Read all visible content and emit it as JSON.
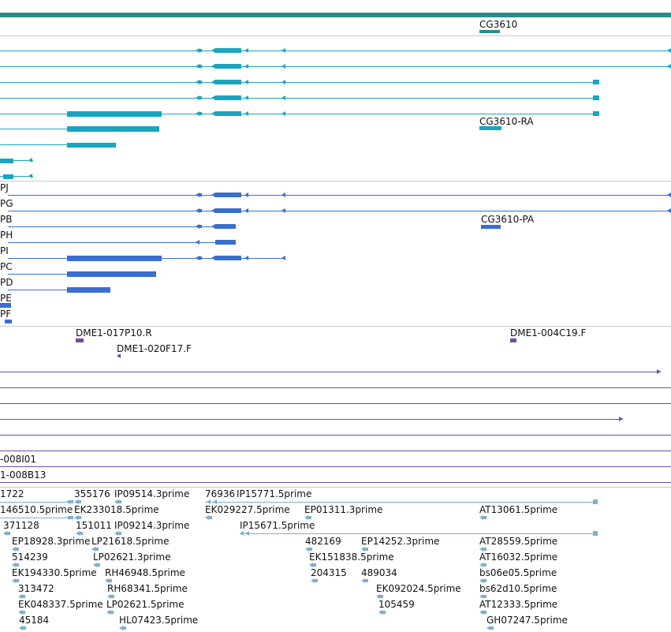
{
  "colors": {
    "gene_bar": "#2e8b8b",
    "transcript_teal": "#1aa5bf",
    "protein_blue": "#3a6ecf",
    "clone_purple": "#6e4ea0",
    "est_lightblue": "#7ab0d6",
    "separator": "#c9c9c9"
  },
  "gene": {
    "label": "CG3610"
  },
  "transcripts_rna": {
    "label_ra": "CG3610-RA"
  },
  "transcripts_protein": {
    "row_labels": [
      "PJ",
      "PG",
      "PB",
      "PH",
      "PI",
      "PC",
      "PD",
      "PE",
      "PF"
    ],
    "label_pa": "CG3610-PA"
  },
  "clones": {
    "labels": [
      "DME1-017P10.R",
      "DME1-004C19.F",
      "DME1-020F17.F"
    ],
    "partial_labels": [
      "-008I01",
      "1-008B13"
    ]
  },
  "ests": {
    "labels": [
      "1722",
      "355176",
      "IP09514.3prime",
      "76936",
      "IP15771.5prime",
      "146510.5prime",
      "EK233018.5prime",
      "EK029227.5prime",
      "EP01311.3prime",
      "AT13061.5prime",
      "371128",
      "151011",
      "IP09214.3prime",
      "IP15671.5prime",
      "EP18928.3prime",
      "LP21618.5prime",
      "482169",
      "EP14252.3prime",
      "AT28559.5prime",
      "514239",
      "LP02621.3prime",
      "EK151838.5prime",
      "AT16032.5prime",
      "EK194330.5prime",
      "RH46948.5prime",
      "204315",
      "489034",
      "bs06e05.5prime",
      "313472",
      "RH68341.5prime",
      "EK092024.5prime",
      "bs62d10.5prime",
      "EK048337.5prime",
      "LP02621.5prime",
      "105459",
      "AT12333.5prime",
      "45184",
      "HL07423.5prime",
      "GH07247.5prime"
    ]
  }
}
